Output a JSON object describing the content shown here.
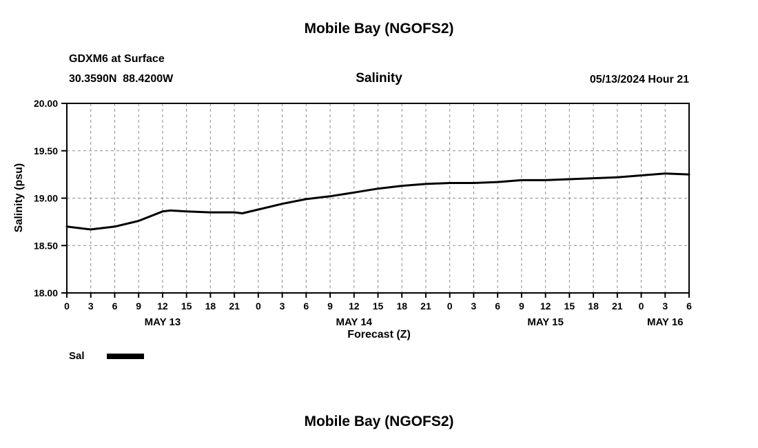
{
  "page": {
    "top_title": "Mobile Bay (NGOFS2)",
    "bottom_title": "Mobile Bay (NGOFS2)"
  },
  "chart_data": {
    "type": "line",
    "title": "Salinity",
    "station": "GDXM6 at Surface",
    "coordinates": "30.3590N  88.4200W",
    "datetime": "05/13/2024 Hour 21",
    "xlabel": "Forecast (Z)",
    "ylabel": "Salinity (psu)",
    "xlim": [
      0,
      78
    ],
    "ylim": [
      18.0,
      20.0
    ],
    "grid": true,
    "legend_position": "bottom-left",
    "x_tick_hours": [
      0,
      3,
      6,
      9,
      12,
      15,
      18,
      21,
      24,
      27,
      30,
      33,
      36,
      39,
      42,
      45,
      48,
      51,
      54,
      57,
      60,
      63,
      66,
      69,
      72,
      75,
      78
    ],
    "x_tick_labels": [
      "0",
      "3",
      "6",
      "9",
      "12",
      "15",
      "18",
      "21",
      "0",
      "3",
      "6",
      "9",
      "12",
      "15",
      "18",
      "21",
      "0",
      "3",
      "6",
      "9",
      "12",
      "15",
      "18",
      "21",
      "0",
      "3",
      "6"
    ],
    "y_ticks": [
      18.0,
      18.5,
      19.0,
      19.5,
      20.0
    ],
    "y_tick_labels": [
      "18.00",
      "18.50",
      "19.00",
      "19.50",
      "20.00"
    ],
    "y_grid": [
      18.5,
      19.0,
      19.5
    ],
    "day_labels": [
      {
        "label": "MAY 13",
        "hour": 12
      },
      {
        "label": "MAY 14",
        "hour": 36
      },
      {
        "label": "MAY 15",
        "hour": 60
      },
      {
        "label": "MAY 16",
        "hour": 75
      }
    ],
    "legend": [
      {
        "name": "Sal",
        "color": "#000000"
      }
    ],
    "series": [
      {
        "name": "Sal",
        "color": "#000000",
        "x": [
          0,
          3,
          6,
          9,
          12,
          13,
          15,
          18,
          21,
          22,
          24,
          27,
          30,
          33,
          36,
          39,
          42,
          45,
          48,
          51,
          54,
          57,
          60,
          63,
          66,
          69,
          72,
          75,
          78
        ],
        "y": [
          18.7,
          18.67,
          18.7,
          18.76,
          18.86,
          18.87,
          18.86,
          18.85,
          18.85,
          18.84,
          18.88,
          18.94,
          18.99,
          19.02,
          19.06,
          19.1,
          19.13,
          19.15,
          19.16,
          19.16,
          19.17,
          19.19,
          19.19,
          19.2,
          19.21,
          19.22,
          19.24,
          19.26,
          19.25
        ]
      }
    ]
  }
}
